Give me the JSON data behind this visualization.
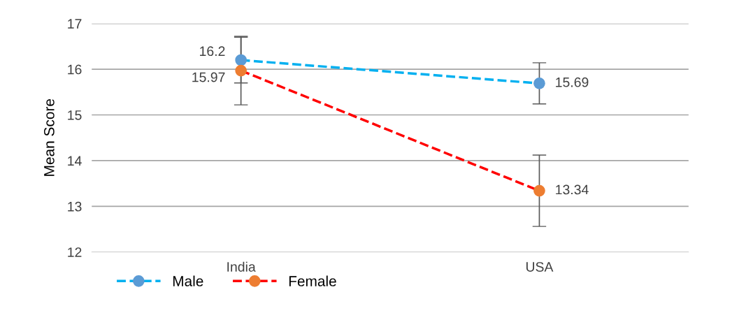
{
  "chart_data": {
    "type": "line",
    "ylabel": "Mean Score",
    "categories": [
      "India",
      "USA"
    ],
    "series": [
      {
        "name": "Male",
        "color": "#00b0f0",
        "colors": [
          "#5b9bd5",
          "#5b9bd5"
        ],
        "values": [
          16.2,
          15.69
        ],
        "errors": [
          0.5,
          0.45
        ]
      },
      {
        "name": "Female",
        "color": "#ff0000",
        "colors": [
          "#ed7d31",
          "#ed7d31"
        ],
        "values": [
          15.97,
          13.34
        ],
        "errors": [
          0.75,
          0.78
        ]
      }
    ],
    "ylim": [
      12,
      17
    ],
    "yticks": [
      12,
      13,
      14,
      15,
      16,
      17
    ],
    "grid": "y",
    "legend": "bottom left",
    "marker": "circle",
    "line_style": "dashed",
    "data_labels": true
  }
}
